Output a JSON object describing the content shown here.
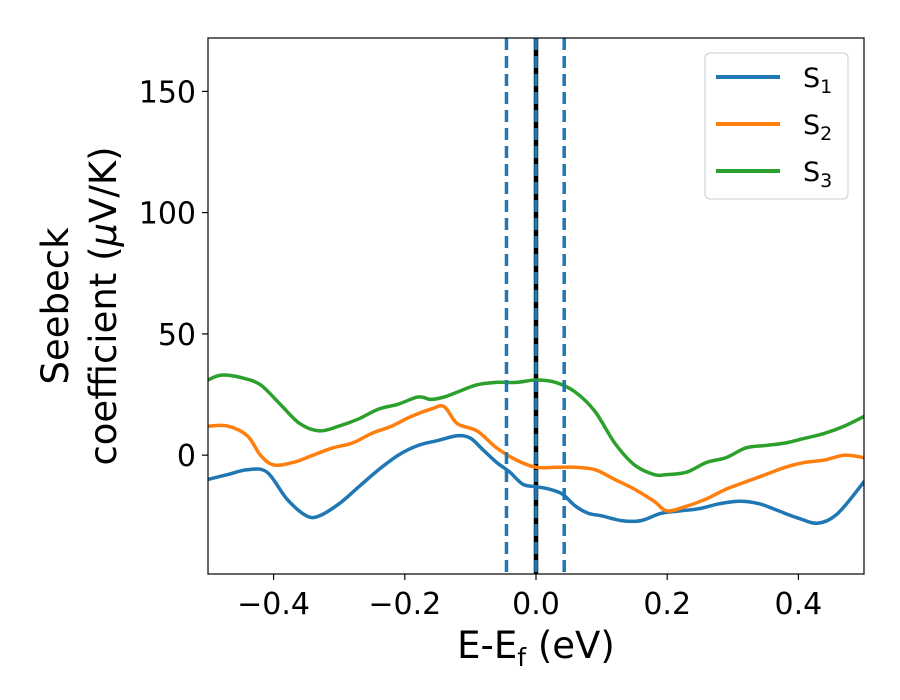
{
  "chart_data": {
    "type": "line",
    "title": "",
    "xlabel": {
      "main": "E-E",
      "sub": "f",
      "unit": " (eV)"
    },
    "ylabel": {
      "line1": "Seebeck",
      "line2_pre": "coefficient  (",
      "mu": "μ",
      "line2_post": "V/K)"
    },
    "xlim": [
      -0.5,
      0.5
    ],
    "ylim": [
      -49,
      172
    ],
    "xticks": [
      -0.4,
      -0.2,
      0.0,
      0.2,
      0.4
    ],
    "xtick_labels": [
      "−0.4",
      "−0.2",
      "0.0",
      "0.2",
      "0.4"
    ],
    "yticks": [
      0,
      50,
      100,
      150
    ],
    "ytick_labels": [
      "0",
      "50",
      "100",
      "150"
    ],
    "grid": false,
    "legend_position": "top-right",
    "vlines": [
      {
        "x": 0.0,
        "style": "solid",
        "color": "#000000"
      },
      {
        "x": -0.045,
        "style": "dashed",
        "color": "#1f77b4"
      },
      {
        "x": 0.0,
        "style": "dashed",
        "color": "#1f77b4"
      },
      {
        "x": 0.043,
        "style": "dashed",
        "color": "#1f77b4"
      }
    ],
    "series": [
      {
        "name": "S",
        "sub": "1",
        "color": "#1f77b4",
        "x": [
          -0.5,
          -0.47,
          -0.44,
          -0.41,
          -0.38,
          -0.35,
          -0.33,
          -0.3,
          -0.27,
          -0.24,
          -0.21,
          -0.18,
          -0.15,
          -0.12,
          -0.1,
          -0.08,
          -0.06,
          -0.04,
          -0.02,
          0.0,
          0.02,
          0.04,
          0.06,
          0.08,
          0.1,
          0.13,
          0.16,
          0.19,
          0.22,
          0.25,
          0.28,
          0.31,
          0.34,
          0.37,
          0.4,
          0.43,
          0.46,
          0.5
        ],
        "y": [
          -10,
          -8,
          -6,
          -7,
          -18,
          -25,
          -25,
          -20,
          -13,
          -6,
          0,
          4,
          6,
          8,
          7,
          2,
          -3,
          -7,
          -12,
          -13,
          -14,
          -16,
          -21,
          -24,
          -25,
          -27,
          -27,
          -24,
          -23,
          -22,
          -20,
          -19,
          -20,
          -23,
          -26,
          -28,
          -24,
          -11
        ]
      },
      {
        "name": "S",
        "sub": "2",
        "color": "#ff7f0e",
        "x": [
          -0.5,
          -0.47,
          -0.44,
          -0.42,
          -0.4,
          -0.37,
          -0.34,
          -0.31,
          -0.28,
          -0.25,
          -0.22,
          -0.19,
          -0.16,
          -0.14,
          -0.12,
          -0.09,
          -0.06,
          -0.03,
          0.0,
          0.03,
          0.06,
          0.09,
          0.12,
          0.15,
          0.18,
          0.2,
          0.23,
          0.26,
          0.29,
          0.32,
          0.35,
          0.38,
          0.41,
          0.44,
          0.47,
          0.5
        ],
        "y": [
          12,
          12,
          8,
          0,
          -4,
          -3,
          0,
          3,
          5,
          9,
          12,
          16,
          19,
          20,
          13,
          10,
          3,
          -2,
          -5,
          -5,
          -5,
          -6,
          -10,
          -14,
          -19,
          -23,
          -21,
          -18,
          -14,
          -11,
          -8,
          -5,
          -3,
          -2,
          0,
          -1
        ]
      },
      {
        "name": "S",
        "sub": "3",
        "color": "#2ca02c",
        "x": [
          -0.5,
          -0.48,
          -0.45,
          -0.42,
          -0.39,
          -0.36,
          -0.33,
          -0.3,
          -0.27,
          -0.24,
          -0.21,
          -0.18,
          -0.16,
          -0.14,
          -0.12,
          -0.09,
          -0.06,
          -0.03,
          0.0,
          0.03,
          0.06,
          0.09,
          0.12,
          0.15,
          0.18,
          0.2,
          0.23,
          0.26,
          0.29,
          0.32,
          0.35,
          0.38,
          0.41,
          0.44,
          0.47,
          0.5
        ],
        "y": [
          31,
          33,
          32,
          29,
          21,
          13,
          10,
          12,
          15,
          19,
          21,
          24,
          23,
          24,
          26,
          29,
          30,
          30,
          31,
          30,
          26,
          18,
          5,
          -4,
          -8,
          -8,
          -7,
          -3,
          -1,
          3,
          4,
          5,
          7,
          9,
          12,
          16
        ]
      }
    ]
  }
}
